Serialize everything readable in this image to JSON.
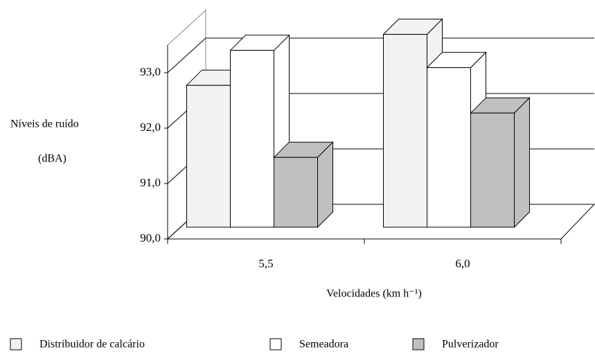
{
  "chart_data": {
    "type": "bar3d",
    "y_label": [
      "Níveis de ruído",
      "(dBA)"
    ],
    "x_label": "Velocidades (km h⁻¹)",
    "categories": [
      "5,5",
      "6,0"
    ],
    "series": [
      {
        "name": "Distribuidor de calcário",
        "color": "#f2f2f2",
        "values": [
          92.56,
          93.48
        ]
      },
      {
        "name": "Semeadora",
        "color": "#ffffff",
        "values": [
          93.19,
          92.88
        ]
      },
      {
        "name": "Pulverizador",
        "color": "#c0c0c0",
        "values": [
          91.26,
          92.06
        ]
      }
    ],
    "ylim": [
      90,
      93.5
    ],
    "yticks": [
      {
        "value": 90,
        "label": "90,0"
      },
      {
        "value": 91,
        "label": "91,0"
      },
      {
        "value": 92,
        "label": "92,0"
      },
      {
        "value": 93,
        "label": "93,0"
      }
    ],
    "grid": true
  }
}
